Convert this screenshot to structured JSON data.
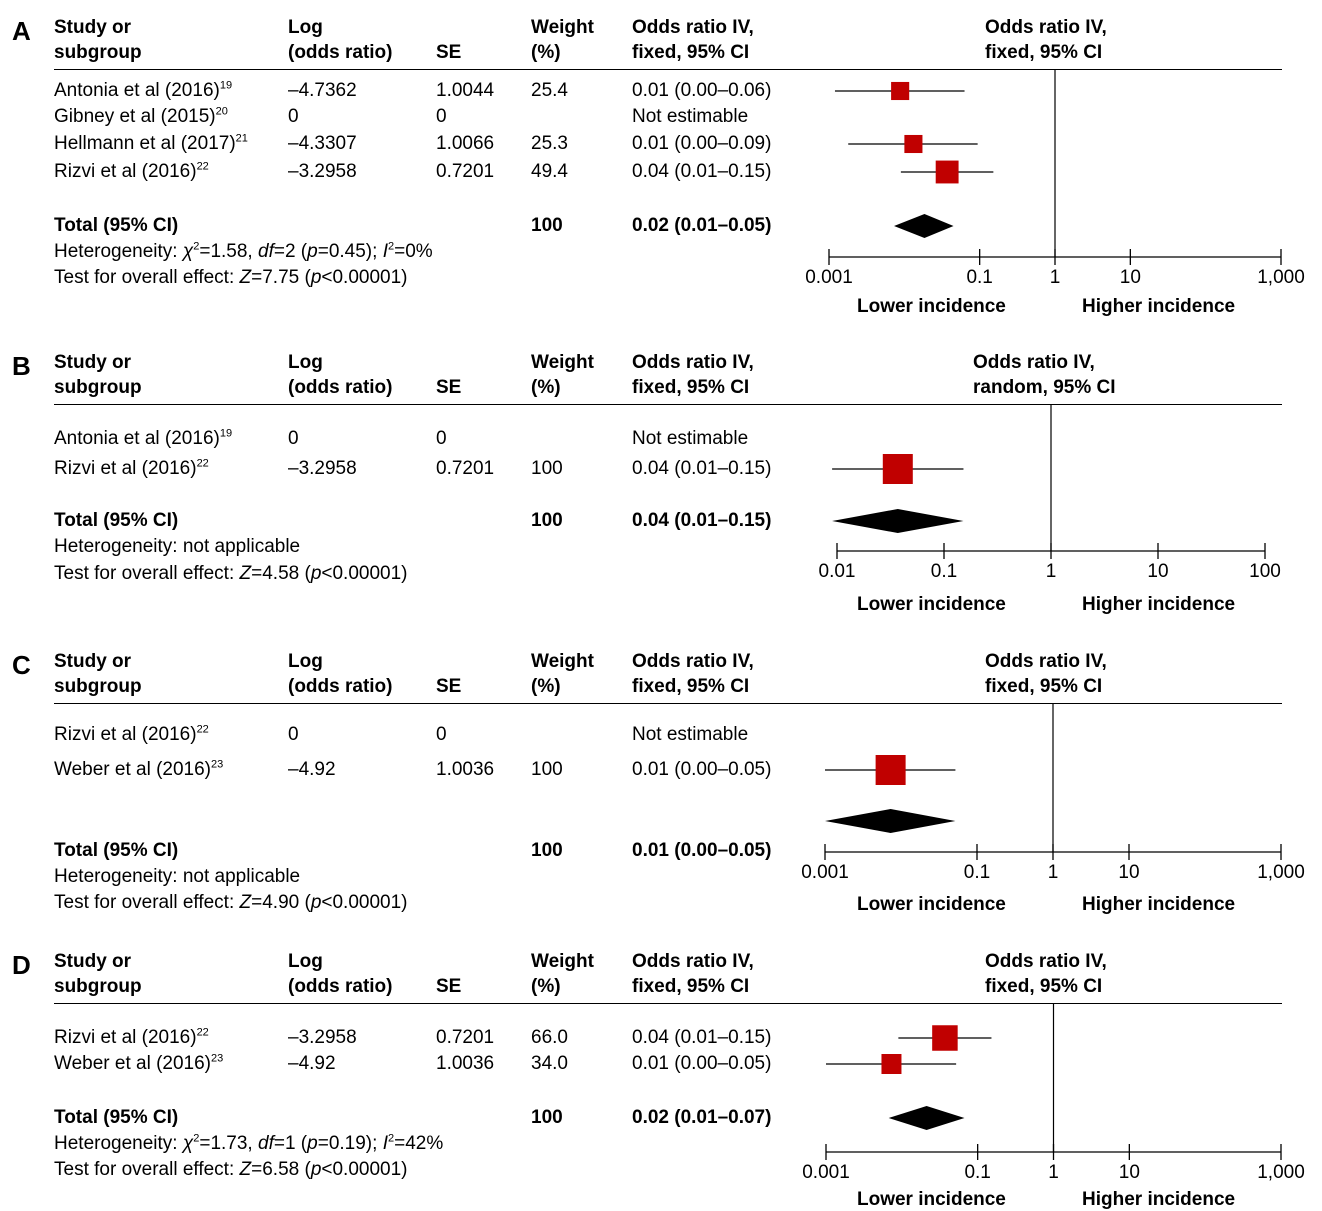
{
  "colors": {
    "marker": "#c00000",
    "diamond": "#000000",
    "line": "#000000"
  },
  "chart_data": [
    {
      "type": "forest",
      "panel": "A",
      "headers": {
        "study": [
          "Study or",
          "subgroup"
        ],
        "log": [
          "Log",
          "(odds ratio)"
        ],
        "se": [
          "SE"
        ],
        "weight": [
          "Weight",
          "(%)"
        ],
        "or_text": [
          "Odds ratio IV,",
          "fixed, 95% CI"
        ],
        "or_plot": [
          "Odds ratio IV,",
          "fixed, 95% CI"
        ]
      },
      "studies": [
        {
          "name": "Antonia et al (2016)",
          "ref": "19",
          "log": "–4.7362",
          "se": "1.0044",
          "weight": "25.4",
          "ci_text": "0.01 (0.00–0.06)",
          "or": 0.0088,
          "lo": 0.0012,
          "hi": 0.063,
          "w": 25.4
        },
        {
          "name": "Gibney et al (2015)",
          "ref": "20",
          "log": "0",
          "se": "0",
          "weight": "",
          "ci_text": "Not estimable",
          "or": null,
          "lo": null,
          "hi": null,
          "w": 0
        },
        {
          "name": "Hellmann et al (2017)",
          "ref": "21",
          "log": "–4.3307",
          "se": "1.0066",
          "weight": "25.3",
          "ci_text": "0.01 (0.00–0.09)",
          "or": 0.0132,
          "lo": 0.0018,
          "hi": 0.094,
          "w": 25.3
        },
        {
          "name": "Rizvi et al (2016)",
          "ref": "22",
          "log": "–3.2958",
          "se": "0.7201",
          "weight": "49.4",
          "ci_text": "0.04 (0.01–0.15)",
          "or": 0.037,
          "lo": 0.009,
          "hi": 0.152,
          "w": 49.4
        }
      ],
      "total": {
        "label": "Total (95% CI)",
        "weight": "100",
        "ci_text": "0.02 (0.01–0.05)",
        "or": 0.0185,
        "lo": 0.0073,
        "hi": 0.045
      },
      "heterogeneity": {
        "prefix": "Heterogeneity: ",
        "chi": "χ",
        "chi_rest": "=1.58, ",
        "df": "df",
        "df_rest": "=2 (",
        "p": "p",
        "p_rest": "=0.45); ",
        "i": "I",
        "i_rest": "=0%"
      },
      "overall": {
        "prefix": "Test for overall effect: ",
        "z": "Z",
        "z_rest": "=7.75 (",
        "p": "p",
        "p_rest": "<0.00001)"
      },
      "x_ticks": [
        {
          "v": 0.001,
          "label": "0.001"
        },
        {
          "v": 0.1,
          "label": "0.1"
        },
        {
          "v": 1,
          "label": "1"
        },
        {
          "v": 10,
          "label": "10"
        },
        {
          "v": 1000,
          "label": "1,000"
        }
      ],
      "xlim": [
        0.001,
        1000
      ],
      "x_scale": "log",
      "footer": {
        "left": "Lower incidence",
        "right": "Higher incidence"
      }
    },
    {
      "type": "forest",
      "panel": "B",
      "headers": {
        "study": [
          "Study or",
          "subgroup"
        ],
        "log": [
          "Log",
          "(odds ratio)"
        ],
        "se": [
          "SE"
        ],
        "weight": [
          "Weight",
          "(%)"
        ],
        "or_text": [
          "Odds ratio IV,",
          "fixed, 95% CI"
        ],
        "or_plot": [
          "Odds ratio IV,",
          "random, 95% CI"
        ]
      },
      "studies": [
        {
          "name": "Antonia et al (2016)",
          "ref": "19",
          "log": "0",
          "se": "0",
          "weight": "",
          "ci_text": "Not estimable",
          "or": null,
          "lo": null,
          "hi": null,
          "w": 0
        },
        {
          "name": "Rizvi et al (2016)",
          "ref": "22",
          "log": "–3.2958",
          "se": "0.7201",
          "weight": "100",
          "ci_text": "0.04 (0.01–0.15)",
          "or": 0.037,
          "lo": 0.009,
          "hi": 0.152,
          "w": 100
        }
      ],
      "total": {
        "label": "Total (95% CI)",
        "weight": "100",
        "ci_text": "0.04 (0.01–0.15)",
        "or": 0.037,
        "lo": 0.009,
        "hi": 0.152
      },
      "heterogeneity": {
        "prefix": "Heterogeneity: not applicable"
      },
      "overall": {
        "prefix": "Test for overall effect: ",
        "z": "Z",
        "z_rest": "=4.58 (",
        "p": "p",
        "p_rest": "<0.00001)"
      },
      "x_ticks": [
        {
          "v": 0.01,
          "label": "0.01"
        },
        {
          "v": 0.1,
          "label": "0.1"
        },
        {
          "v": 1,
          "label": "1"
        },
        {
          "v": 10,
          "label": "10"
        },
        {
          "v": 100,
          "label": "100"
        }
      ],
      "xlim": [
        0.01,
        100
      ],
      "x_scale": "log",
      "footer": {
        "left": "Lower incidence",
        "right": "Higher incidence"
      }
    },
    {
      "type": "forest",
      "panel": "C",
      "headers": {
        "study": [
          "Study or",
          "subgroup"
        ],
        "log": [
          "Log",
          "(odds ratio)"
        ],
        "se": [
          "SE"
        ],
        "weight": [
          "Weight",
          "(%)"
        ],
        "or_text": [
          "Odds ratio IV,",
          "fixed, 95% CI"
        ],
        "or_plot": [
          "Odds ratio IV,",
          "fixed, 95% CI"
        ]
      },
      "studies": [
        {
          "name": "Rizvi et al (2016)",
          "ref": "22",
          "log": "0",
          "se": "0",
          "weight": "",
          "ci_text": "Not estimable",
          "or": null,
          "lo": null,
          "hi": null,
          "w": 0
        },
        {
          "name": "Weber et al (2016)",
          "ref": "23",
          "log": "–4.92",
          "se": "1.0036",
          "weight": "100",
          "ci_text": "0.01 (0.00–0.05)",
          "or": 0.0073,
          "lo": 0.001,
          "hi": 0.052,
          "w": 100
        }
      ],
      "total": {
        "label": "Total (95% CI)",
        "weight": "100",
        "ci_text": "0.01 (0.00–0.05)",
        "or": 0.0073,
        "lo": 0.001,
        "hi": 0.052
      },
      "heterogeneity": {
        "prefix": "Heterogeneity: not applicable"
      },
      "overall": {
        "prefix": "Test for overall effect: ",
        "z": "Z",
        "z_rest": "=4.90 (",
        "p": "p",
        "p_rest": "<0.00001)"
      },
      "x_ticks": [
        {
          "v": 0.001,
          "label": "0.001"
        },
        {
          "v": 0.1,
          "label": "0.1"
        },
        {
          "v": 1,
          "label": "1"
        },
        {
          "v": 10,
          "label": "10"
        },
        {
          "v": 1000,
          "label": "1,000"
        }
      ],
      "xlim": [
        0.001,
        1000
      ],
      "x_scale": "log",
      "footer": {
        "left": "Lower incidence",
        "right": "Higher incidence"
      }
    },
    {
      "type": "forest",
      "panel": "D",
      "headers": {
        "study": [
          "Study or",
          "subgroup"
        ],
        "log": [
          "Log",
          "(odds ratio)"
        ],
        "se": [
          "SE"
        ],
        "weight": [
          "Weight",
          "(%)"
        ],
        "or_text": [
          "Odds ratio IV,",
          "fixed, 95% CI"
        ],
        "or_plot": [
          "Odds ratio IV,",
          "fixed, 95% CI"
        ]
      },
      "studies": [
        {
          "name": "Rizvi et al (2016)",
          "ref": "22",
          "log": "–3.2958",
          "se": "0.7201",
          "weight": "66.0",
          "ci_text": "0.04 (0.01–0.15)",
          "or": 0.037,
          "lo": 0.009,
          "hi": 0.152,
          "w": 66.0
        },
        {
          "name": "Weber et al (2016)",
          "ref": "23",
          "log": "–4.92",
          "se": "1.0036",
          "weight": "34.0",
          "ci_text": "0.01 (0.00–0.05)",
          "or": 0.0073,
          "lo": 0.001,
          "hi": 0.052,
          "w": 34.0
        }
      ],
      "total": {
        "label": "Total (95% CI)",
        "weight": "100",
        "ci_text": "0.02 (0.01–0.07)",
        "or": 0.0212,
        "lo": 0.0067,
        "hi": 0.067
      },
      "heterogeneity": {
        "prefix": "Heterogeneity: ",
        "chi": "χ",
        "chi_rest": "=1.73, ",
        "df": "df",
        "df_rest": "=1 (",
        "p": "p",
        "p_rest": "=0.19); ",
        "i": "I",
        "i_rest": "=42%"
      },
      "overall": {
        "prefix": "Test for overall effect: ",
        "z": "Z",
        "z_rest": "=6.58 (",
        "p": "p",
        "p_rest": "<0.00001)"
      },
      "x_ticks": [
        {
          "v": 0.001,
          "label": "0.001"
        },
        {
          "v": 0.1,
          "label": "0.1"
        },
        {
          "v": 1,
          "label": "1"
        },
        {
          "v": 10,
          "label": "10"
        },
        {
          "v": 1000,
          "label": "1,000"
        }
      ],
      "xlim": [
        0.001,
        1000
      ],
      "x_scale": "log",
      "footer": {
        "left": "Lower incidence",
        "right": "Higher incidence"
      }
    }
  ]
}
